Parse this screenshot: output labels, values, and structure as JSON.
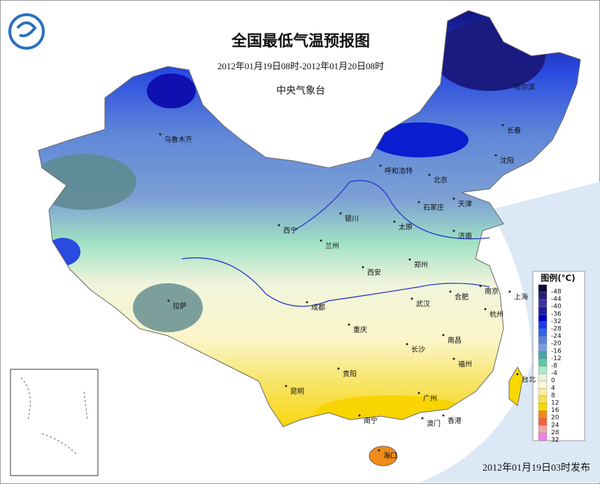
{
  "header": {
    "title": "全国最低气温预报图",
    "period": "2012年01月19日08时-2012年01月20日08时",
    "issuer": "中央气象台"
  },
  "cities": [
    "乌鲁木齐",
    "哈尔滨",
    "长春",
    "沈阳",
    "呼和浩特",
    "北京",
    "天津",
    "石家庄",
    "银川",
    "太原",
    "济南",
    "西宁",
    "兰州",
    "郑州",
    "西安",
    "南京",
    "上海",
    "合肥",
    "拉萨",
    "成都",
    "武汉",
    "杭州",
    "重庆",
    "长沙",
    "南昌",
    "福州",
    "台北",
    "贵阳",
    "昆明",
    "广州",
    "南宁",
    "澳门",
    "香港",
    "海口"
  ],
  "legend": {
    "title": "图例(℃)",
    "items": [
      {
        "value": -48,
        "color": "#0c0c3a"
      },
      {
        "value": -44,
        "color": "#2a1f78"
      },
      {
        "value": -40,
        "color": "#3b33a6"
      },
      {
        "value": -36,
        "color": "#1c1ca0"
      },
      {
        "value": -32,
        "color": "#0000c8"
      },
      {
        "value": -28,
        "color": "#1a3cf0"
      },
      {
        "value": -24,
        "color": "#3366e0"
      },
      {
        "value": -20,
        "color": "#5a82dc"
      },
      {
        "value": -16,
        "color": "#7a9ed8"
      },
      {
        "value": -12,
        "color": "#4aa3a8"
      },
      {
        "value": -8,
        "color": "#60c8a8"
      },
      {
        "value": -4,
        "color": "#a8e8c8"
      },
      {
        "value": 0,
        "color": "#e6f2dc"
      },
      {
        "value": 4,
        "color": "#fbf7d0"
      },
      {
        "value": 8,
        "color": "#f8eca0"
      },
      {
        "value": 12,
        "color": "#f6e050"
      },
      {
        "value": 16,
        "color": "#f8d800"
      },
      {
        "value": 20,
        "color": "#f08a18"
      },
      {
        "value": 24,
        "color": "#f06040"
      },
      {
        "value": 28,
        "color": "#f0a8a0"
      },
      {
        "value": 32,
        "color": "#f080e8"
      }
    ]
  },
  "footer": "2012年01月19日03时发布"
}
